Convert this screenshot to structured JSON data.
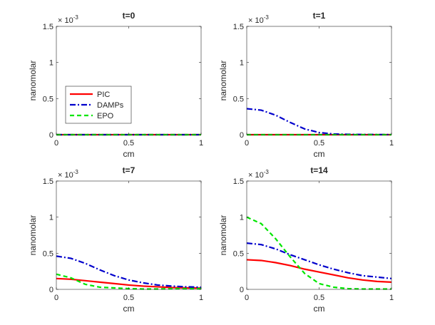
{
  "figure": {
    "legend": [
      {
        "name": "PIC",
        "color": "#ff0000"
      },
      {
        "name": "DAMPs",
        "color": "#0000cc"
      },
      {
        "name": "EPO",
        "color": "#00e600"
      }
    ]
  },
  "chart_data": [
    {
      "type": "line",
      "title": "t=0",
      "xlabel": "cm",
      "ylabel": "nanomolar",
      "xlim": [
        0,
        1
      ],
      "ylim": [
        0,
        1.5
      ],
      "y_exponent": "× 10",
      "y_exponent_power": "-3",
      "xticks": [
        "0",
        "0.5",
        "1"
      ],
      "yticks": [
        "0",
        "0.5",
        "1",
        "1.5"
      ],
      "x": [
        0,
        0.1,
        0.2,
        0.3,
        0.4,
        0.5,
        0.6,
        0.7,
        0.8,
        0.9,
        1.0
      ],
      "series": [
        {
          "name": "PIC",
          "values": [
            0,
            0,
            0,
            0,
            0,
            0,
            0,
            0,
            0,
            0,
            0
          ]
        },
        {
          "name": "DAMPs",
          "values": [
            0,
            0,
            0,
            0,
            0,
            0,
            0,
            0,
            0,
            0,
            0
          ]
        },
        {
          "name": "EPO",
          "values": [
            0,
            0,
            0,
            0,
            0,
            0,
            0,
            0,
            0,
            0,
            0
          ]
        }
      ]
    },
    {
      "type": "line",
      "title": "t=1",
      "xlabel": "cm",
      "ylabel": "nanomolar",
      "xlim": [
        0,
        1
      ],
      "ylim": [
        0,
        1.5
      ],
      "y_exponent": "× 10",
      "y_exponent_power": "-3",
      "xticks": [
        "0",
        "0.5",
        "1"
      ],
      "yticks": [
        "0",
        "0.5",
        "1",
        "1.5"
      ],
      "x": [
        0,
        0.1,
        0.2,
        0.3,
        0.4,
        0.5,
        0.6,
        0.7,
        0.8,
        0.9,
        1.0
      ],
      "series": [
        {
          "name": "PIC",
          "values": [
            0,
            0,
            0,
            0,
            0,
            0,
            0,
            0,
            0,
            0,
            0
          ]
        },
        {
          "name": "DAMPs",
          "values": [
            0.36,
            0.34,
            0.27,
            0.17,
            0.08,
            0.03,
            0.01,
            0.005,
            0.003,
            0.002,
            0.001
          ]
        },
        {
          "name": "EPO",
          "values": [
            0,
            0,
            0,
            0,
            0,
            0,
            0,
            0,
            0,
            0,
            0
          ]
        }
      ]
    },
    {
      "type": "line",
      "title": "t=7",
      "xlabel": "cm",
      "ylabel": "nanomolar",
      "xlim": [
        0,
        1
      ],
      "ylim": [
        0,
        1.5
      ],
      "y_exponent": "× 10",
      "y_exponent_power": "-3",
      "xticks": [
        "0",
        "0.5",
        "1"
      ],
      "yticks": [
        "0",
        "0.5",
        "1",
        "1.5"
      ],
      "x": [
        0,
        0.1,
        0.2,
        0.3,
        0.4,
        0.5,
        0.6,
        0.7,
        0.8,
        0.9,
        1.0
      ],
      "series": [
        {
          "name": "PIC",
          "values": [
            0.15,
            0.14,
            0.12,
            0.1,
            0.08,
            0.06,
            0.045,
            0.035,
            0.025,
            0.02,
            0.018
          ]
        },
        {
          "name": "DAMPs",
          "values": [
            0.46,
            0.43,
            0.36,
            0.27,
            0.19,
            0.13,
            0.09,
            0.06,
            0.045,
            0.035,
            0.03
          ]
        },
        {
          "name": "EPO",
          "values": [
            0.21,
            0.16,
            0.07,
            0.03,
            0.02,
            0.01,
            0.005,
            0.005,
            0.01,
            0.01,
            0.01
          ]
        }
      ]
    },
    {
      "type": "line",
      "title": "t=14",
      "xlabel": "cm",
      "ylabel": "nanomolar",
      "xlim": [
        0,
        1
      ],
      "ylim": [
        0,
        1.5
      ],
      "y_exponent": "× 10",
      "y_exponent_power": "-3",
      "xticks": [
        "0",
        "0.5",
        "1"
      ],
      "yticks": [
        "0",
        "0.5",
        "1",
        "1.5"
      ],
      "x": [
        0,
        0.1,
        0.2,
        0.3,
        0.4,
        0.5,
        0.6,
        0.7,
        0.8,
        0.9,
        1.0
      ],
      "series": [
        {
          "name": "PIC",
          "values": [
            0.41,
            0.4,
            0.37,
            0.33,
            0.28,
            0.24,
            0.2,
            0.16,
            0.13,
            0.11,
            0.1
          ]
        },
        {
          "name": "DAMPs",
          "values": [
            0.64,
            0.62,
            0.56,
            0.48,
            0.41,
            0.34,
            0.28,
            0.23,
            0.19,
            0.17,
            0.15
          ]
        },
        {
          "name": "EPO",
          "values": [
            1.0,
            0.91,
            0.7,
            0.45,
            0.22,
            0.08,
            0.03,
            0.01,
            0.005,
            0.005,
            0.005
          ]
        }
      ]
    }
  ]
}
